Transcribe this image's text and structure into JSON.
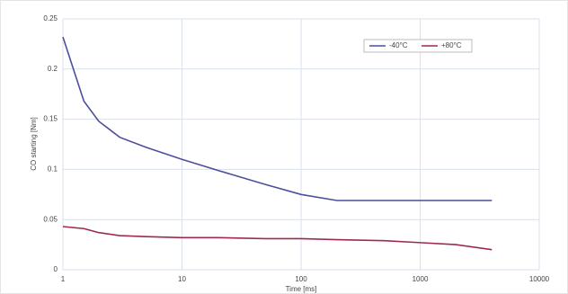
{
  "chart_data": {
    "type": "line",
    "x": [
      1,
      1.5,
      2,
      3,
      5,
      10,
      20,
      50,
      100,
      200,
      500,
      1000,
      2000,
      4000
    ],
    "series": [
      {
        "name": "-40°C",
        "color": "#4b4f9c",
        "values": [
          0.232,
          0.168,
          0.148,
          0.132,
          0.122,
          0.11,
          0.099,
          0.085,
          0.075,
          0.069,
          0.069,
          0.069,
          0.069,
          0.069
        ]
      },
      {
        "name": "+80°C",
        "color": "#9c2c4c",
        "values": [
          0.043,
          0.041,
          0.037,
          0.034,
          0.033,
          0.032,
          0.032,
          0.031,
          0.031,
          0.03,
          0.029,
          0.027,
          0.025,
          0.02
        ]
      }
    ],
    "xlabel": "Time [ms]",
    "ylabel": "CO starting [Nm]",
    "xscale": "log",
    "xlim": [
      1,
      10000
    ],
    "xticks": [
      1,
      10,
      100,
      1000,
      10000
    ],
    "ylim": [
      0,
      0.25
    ],
    "yticks": [
      0,
      0.05,
      0.1,
      0.15,
      0.2,
      0.25
    ],
    "grid": true,
    "legend": "upper right"
  }
}
